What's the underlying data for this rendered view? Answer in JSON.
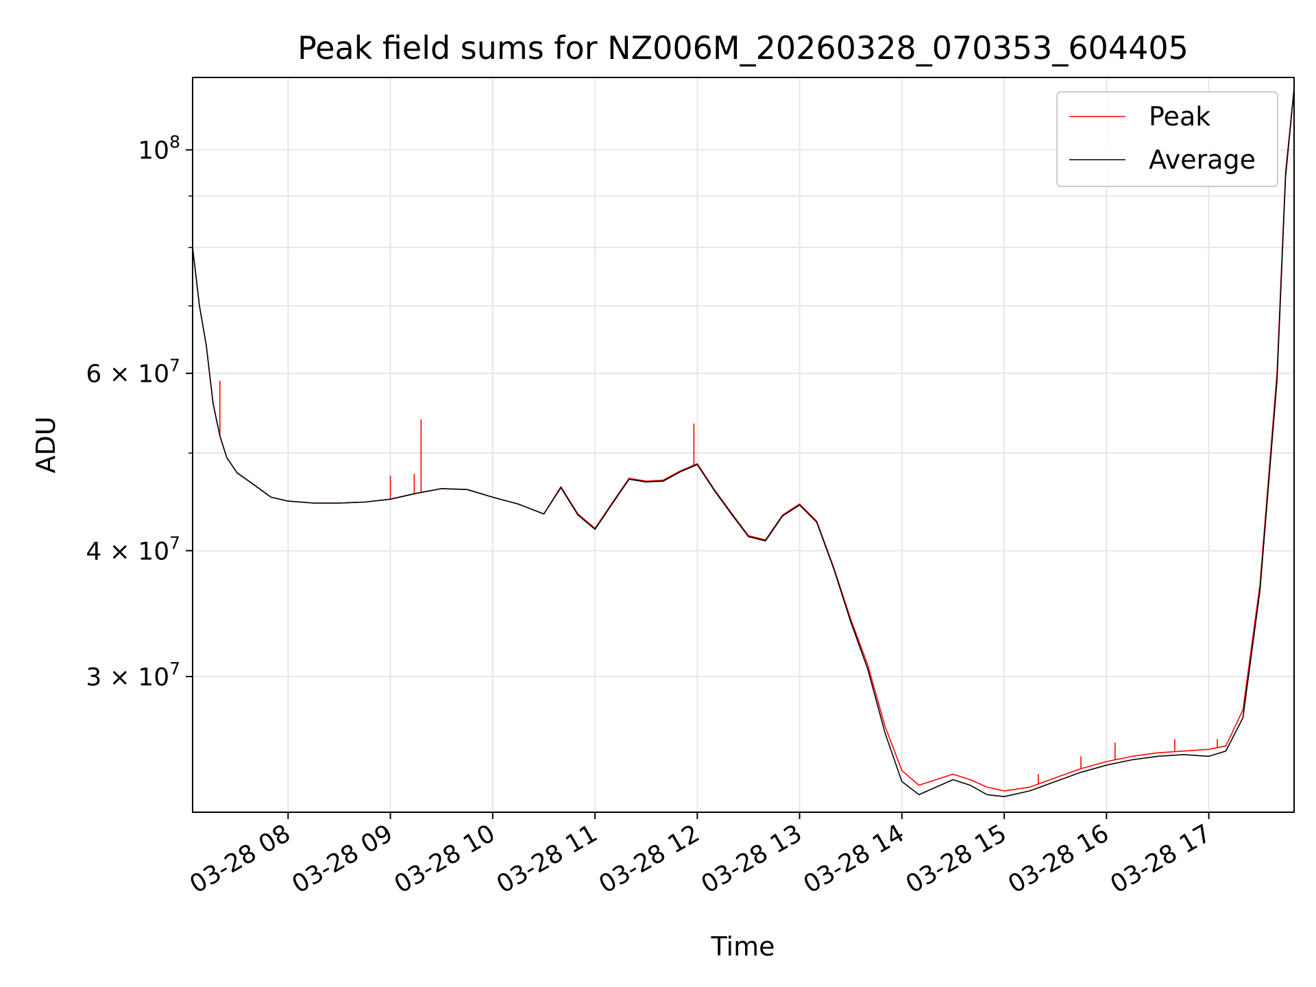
{
  "chart_data": {
    "type": "line",
    "title": "Peak field sums for NZ006M_20260328_070353_604405",
    "xlabel": "Time",
    "ylabel": "ADU",
    "yscale": "log",
    "ylim": [
      22000000,
      118000000
    ],
    "xlim": [
      "2026-03-28 07:04",
      "2026-03-28 17:50"
    ],
    "grid": true,
    "legend_position": "top-right",
    "x_ticks": [
      {
        "value": "2026-03-28 08:00",
        "label": "03-28 08"
      },
      {
        "value": "2026-03-28 09:00",
        "label": "03-28 09"
      },
      {
        "value": "2026-03-28 10:00",
        "label": "03-28 10"
      },
      {
        "value": "2026-03-28 11:00",
        "label": "03-28 11"
      },
      {
        "value": "2026-03-28 12:00",
        "label": "03-28 12"
      },
      {
        "value": "2026-03-28 13:00",
        "label": "03-28 13"
      },
      {
        "value": "2026-03-28 14:00",
        "label": "03-28 14"
      },
      {
        "value": "2026-03-28 15:00",
        "label": "03-28 15"
      },
      {
        "value": "2026-03-28 16:00",
        "label": "03-28 16"
      },
      {
        "value": "2026-03-28 17:00",
        "label": "03-28 17"
      }
    ],
    "y_ticks": [
      {
        "value": 30000000,
        "mantissa": "3",
        "exponent": "7"
      },
      {
        "value": 40000000,
        "mantissa": "4",
        "exponent": "7"
      },
      {
        "value": 60000000,
        "mantissa": "6",
        "exponent": "7"
      },
      {
        "value": 100000000,
        "mantissa": "10",
        "exponent": "8"
      }
    ],
    "y_minor_ticks": [
      50000000,
      70000000,
      80000000,
      90000000
    ],
    "x": [
      "2026-03-28 07:04",
      "2026-03-28 07:08",
      "2026-03-28 07:12",
      "2026-03-28 07:16",
      "2026-03-28 07:20",
      "2026-03-28 07:24",
      "2026-03-28 07:30",
      "2026-03-28 07:40",
      "2026-03-28 07:50",
      "2026-03-28 08:00",
      "2026-03-28 08:15",
      "2026-03-28 08:30",
      "2026-03-28 08:45",
      "2026-03-28 09:00",
      "2026-03-28 09:15",
      "2026-03-28 09:30",
      "2026-03-28 09:45",
      "2026-03-28 10:00",
      "2026-03-28 10:15",
      "2026-03-28 10:30",
      "2026-03-28 10:40",
      "2026-03-28 10:50",
      "2026-03-28 11:00",
      "2026-03-28 11:10",
      "2026-03-28 11:20",
      "2026-03-28 11:30",
      "2026-03-28 11:40",
      "2026-03-28 11:50",
      "2026-03-28 12:00",
      "2026-03-28 12:10",
      "2026-03-28 12:20",
      "2026-03-28 12:30",
      "2026-03-28 12:40",
      "2026-03-28 12:50",
      "2026-03-28 13:00",
      "2026-03-28 13:10",
      "2026-03-28 13:20",
      "2026-03-28 13:30",
      "2026-03-28 13:40",
      "2026-03-28 13:50",
      "2026-03-28 14:00",
      "2026-03-28 14:10",
      "2026-03-28 14:20",
      "2026-03-28 14:30",
      "2026-03-28 14:40",
      "2026-03-28 14:50",
      "2026-03-28 15:00",
      "2026-03-28 15:15",
      "2026-03-28 15:30",
      "2026-03-28 15:45",
      "2026-03-28 16:00",
      "2026-03-28 16:15",
      "2026-03-28 16:30",
      "2026-03-28 16:45",
      "2026-03-28 17:00",
      "2026-03-28 17:10",
      "2026-03-28 17:20",
      "2026-03-28 17:30",
      "2026-03-28 17:40",
      "2026-03-28 17:45",
      "2026-03-28 17:50"
    ],
    "series": [
      {
        "name": "Peak",
        "color": "#ff0000",
        "values": [
          80000000,
          70000000,
          64000000,
          56000000,
          52000000,
          49500000,
          47800000,
          46500000,
          45200000,
          44800000,
          44600000,
          44600000,
          44700000,
          45000000,
          45600000,
          46100000,
          46000000,
          45200000,
          44500000,
          43500000,
          46300000,
          43500000,
          42100000,
          44600000,
          47200000,
          46900000,
          47000000,
          48000000,
          48800000,
          46000000,
          43600000,
          41400000,
          41000000,
          43400000,
          44500000,
          42800000,
          38500000,
          34200000,
          30800000,
          26800000,
          24200000,
          23400000,
          23700000,
          24000000,
          23700000,
          23300000,
          23100000,
          23300000,
          23800000,
          24300000,
          24700000,
          25000000,
          25200000,
          25300000,
          25400000,
          25600000,
          27800000,
          37000000,
          60000000,
          95000000,
          115000000
        ]
      },
      {
        "name": "Average",
        "color": "#000000",
        "values": [
          80000000,
          70000000,
          64000000,
          56000000,
          52000000,
          49500000,
          47800000,
          46500000,
          45200000,
          44800000,
          44600000,
          44600000,
          44700000,
          45000000,
          45600000,
          46100000,
          46000000,
          45200000,
          44500000,
          43500000,
          46200000,
          43400000,
          42000000,
          44500000,
          47100000,
          46800000,
          46900000,
          47900000,
          48700000,
          45900000,
          43500000,
          41300000,
          40900000,
          43300000,
          44400000,
          42700000,
          38400000,
          34000000,
          30500000,
          26400000,
          23600000,
          22900000,
          23300000,
          23700000,
          23400000,
          22900000,
          22800000,
          23100000,
          23600000,
          24100000,
          24500000,
          24800000,
          25000000,
          25100000,
          25000000,
          25300000,
          27300000,
          36500000,
          59000000,
          94000000,
          115000000
        ]
      }
    ],
    "peak_spikes": [
      {
        "x": "2026-03-28 07:20",
        "value": 59000000
      },
      {
        "x": "2026-03-28 09:00",
        "value": 47500000
      },
      {
        "x": "2026-03-28 09:14",
        "value": 47700000
      },
      {
        "x": "2026-03-28 09:18",
        "value": 54000000
      },
      {
        "x": "2026-03-28 11:58",
        "value": 53500000
      },
      {
        "x": "2026-03-28 15:20",
        "value": 24000000
      },
      {
        "x": "2026-03-28 15:45",
        "value": 25000000
      },
      {
        "x": "2026-03-28 16:05",
        "value": 25800000
      },
      {
        "x": "2026-03-28 16:40",
        "value": 26000000
      },
      {
        "x": "2026-03-28 17:05",
        "value": 26000000
      }
    ]
  }
}
